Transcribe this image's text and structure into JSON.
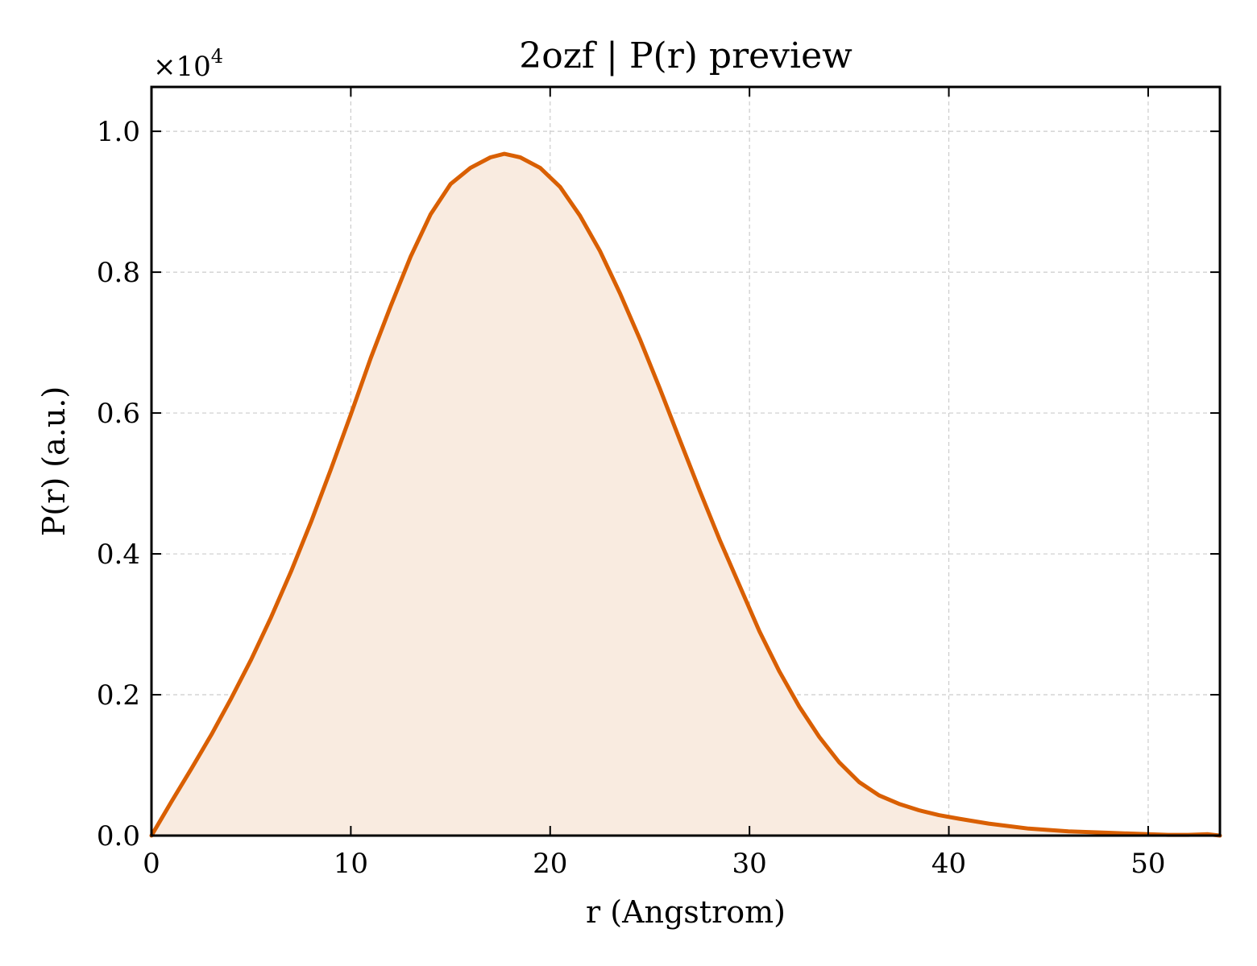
{
  "chart_data": {
    "type": "area",
    "title": "2ozf | P(r) preview",
    "xlabel": "r (Angstrom)",
    "ylabel": "P(r) (a.u.)",
    "y_offset_text": "×10",
    "y_offset_exponent": "4",
    "xlim": [
      0,
      53.6
    ],
    "ylim": [
      0,
      1.063
    ],
    "xticks": [
      0,
      10,
      20,
      30,
      40,
      50
    ],
    "xtick_labels": [
      "0",
      "10",
      "20",
      "30",
      "40",
      "50"
    ],
    "yticks": [
      0.0,
      0.2,
      0.4,
      0.6,
      0.8,
      1.0
    ],
    "ytick_labels": [
      "0.0",
      "0.2",
      "0.4",
      "0.6",
      "0.8",
      "1.0"
    ],
    "grid": true,
    "colors": {
      "line": "#d95f02",
      "fill": "#f9ebe0"
    },
    "series": [
      {
        "x": [
          0,
          1,
          2,
          3,
          4,
          5,
          6,
          7,
          8,
          9,
          10,
          11,
          12,
          13,
          14,
          15,
          16,
          17,
          17.7,
          18.5,
          19.5,
          20.5,
          21.5,
          22.5,
          23.5,
          24.5,
          25.5,
          26.5,
          27.5,
          28.5,
          29.5,
          30.5,
          31.5,
          32.5,
          33.5,
          34.5,
          35.5,
          36.5,
          37.5,
          38.5,
          39.5,
          40.5,
          42,
          44,
          46,
          48,
          50,
          51,
          52,
          53,
          53.6
        ],
        "y": [
          0.0,
          0.048,
          0.095,
          0.143,
          0.195,
          0.25,
          0.31,
          0.375,
          0.445,
          0.52,
          0.598,
          0.678,
          0.752,
          0.822,
          0.882,
          0.925,
          0.948,
          0.963,
          0.968,
          0.963,
          0.948,
          0.921,
          0.88,
          0.83,
          0.77,
          0.705,
          0.635,
          0.562,
          0.49,
          0.42,
          0.355,
          0.29,
          0.233,
          0.183,
          0.14,
          0.104,
          0.076,
          0.057,
          0.045,
          0.036,
          0.029,
          0.024,
          0.017,
          0.01,
          0.006,
          0.004,
          0.002,
          0.001,
          0.001,
          0.002,
          0.0
        ]
      }
    ]
  }
}
